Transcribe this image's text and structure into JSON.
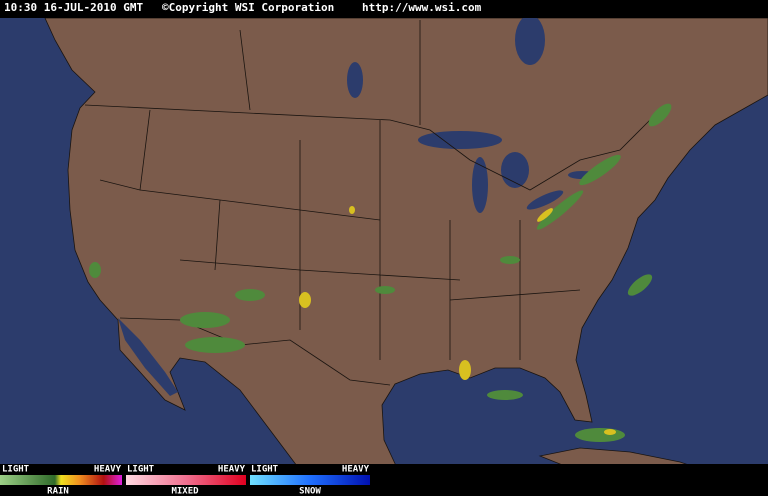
{
  "header": {
    "timestamp": "10:30 16-JUL-2010 GMT",
    "copyright": "©Copyright WSI Corporation",
    "url": "http://www.wsi.com"
  },
  "legend": [
    {
      "light": "LIGHT",
      "heavy": "HEAVY",
      "label": "RAIN"
    },
    {
      "light": "LIGHT",
      "heavy": "HEAVY",
      "label": "MIXED"
    },
    {
      "light": "LIGHT",
      "heavy": "HEAVY",
      "label": "SNOW"
    }
  ]
}
